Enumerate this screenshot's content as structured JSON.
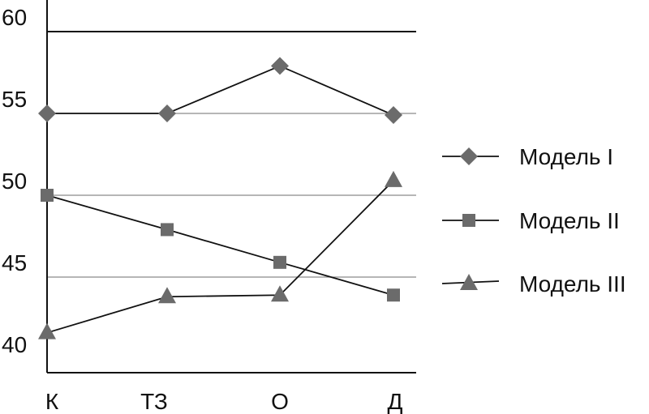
{
  "chart_data": {
    "type": "line",
    "title": "",
    "xlabel": "",
    "ylabel": "",
    "categories": [
      "К",
      "ТЗ",
      "О",
      "Д"
    ],
    "ylim": [
      40,
      60
    ],
    "yticks": [
      40,
      45,
      50,
      55,
      60
    ],
    "grid": "horizontal",
    "legend_position": "right",
    "series": [
      {
        "name": "Модель I",
        "marker": "diamond",
        "values": [
          55,
          55,
          57.9,
          54.9
        ]
      },
      {
        "name": "Модель II",
        "marker": "square",
        "values": [
          50,
          47.9,
          45.9,
          43.9
        ]
      },
      {
        "name": "Модель III",
        "marker": "triangle",
        "values": [
          41.6,
          43.8,
          43.9,
          50.9
        ]
      }
    ],
    "colors": {
      "marker": "#6b6b6b",
      "line": "#111111",
      "grid": "#8a8a8a",
      "top_grid": "#111111"
    }
  }
}
